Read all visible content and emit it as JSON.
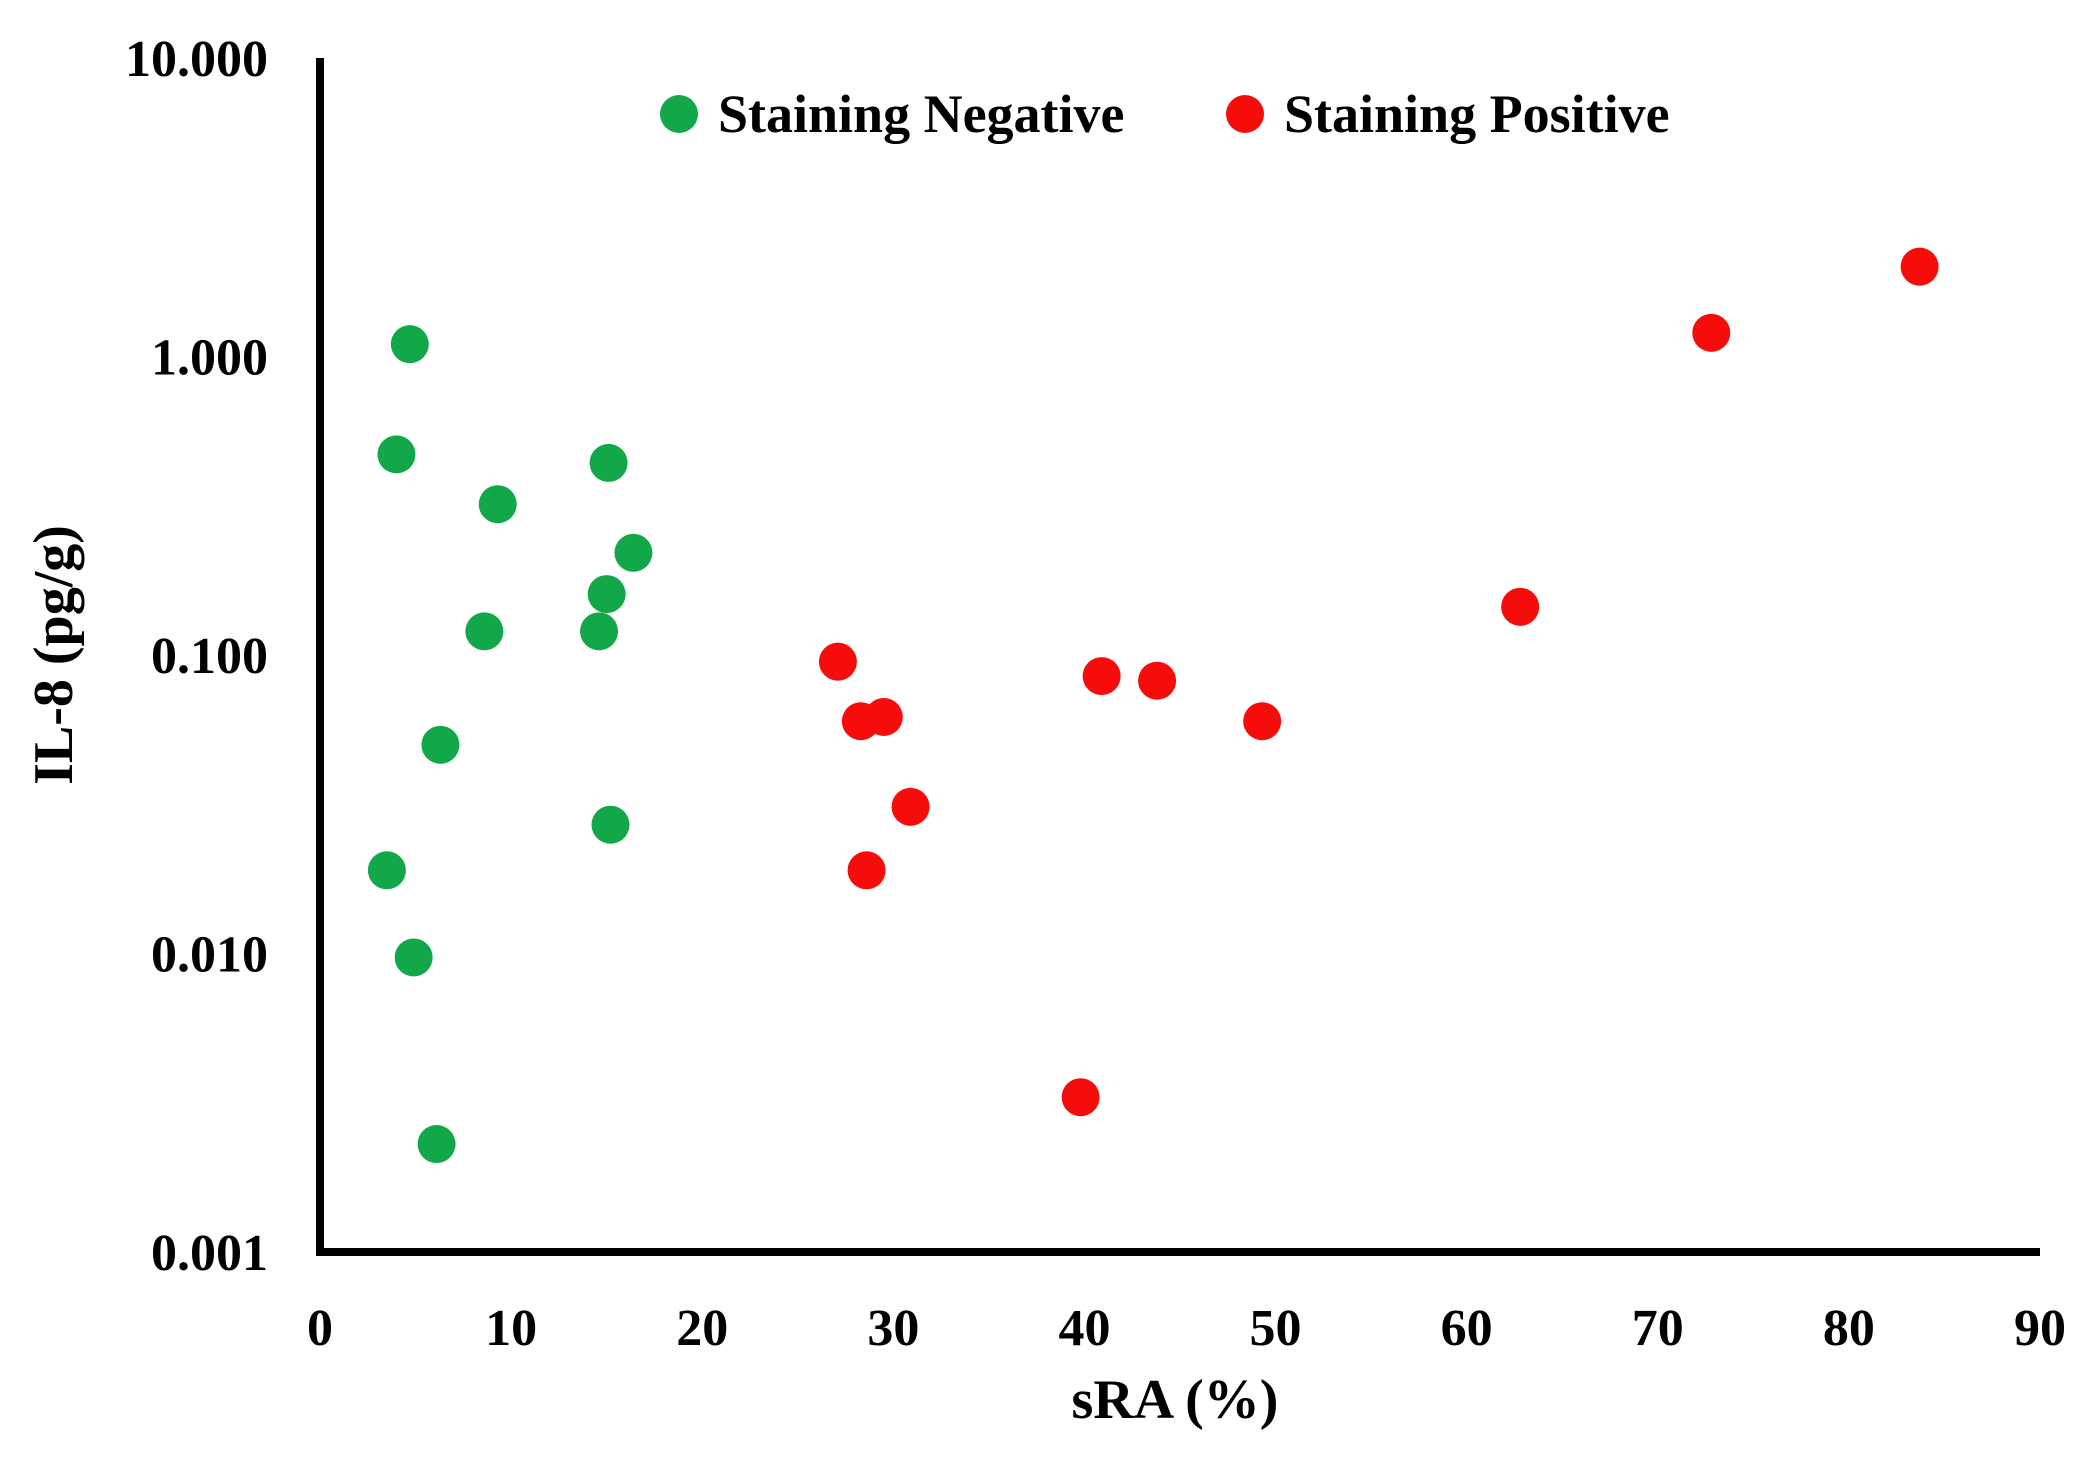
{
  "colors": {
    "negative": "#12a84a",
    "positive": "#f70c0c",
    "axis": "#000000"
  },
  "chart_data": {
    "type": "scatter",
    "title": "",
    "xlabel": "sRA (%)",
    "ylabel": "IL-8 (pg/g)",
    "xlim": [
      0,
      90
    ],
    "ylim": [
      0.001,
      10
    ],
    "y_scale": "log",
    "x_ticks": [
      "0",
      "10",
      "20",
      "30",
      "40",
      "50",
      "60",
      "70",
      "80",
      "90"
    ],
    "y_ticks": [
      "0.001",
      "0.010",
      "0.100",
      "1.000",
      "10.000"
    ],
    "grid": false,
    "legend_position": "top",
    "series": [
      {
        "name": "Staining Negative",
        "color": "#12a84a",
        "points": [
          {
            "x": 4.7,
            "y": 1.1
          },
          {
            "x": 4.0,
            "y": 0.47
          },
          {
            "x": 9.3,
            "y": 0.32
          },
          {
            "x": 15.1,
            "y": 0.44
          },
          {
            "x": 16.4,
            "y": 0.22
          },
          {
            "x": 15.0,
            "y": 0.16
          },
          {
            "x": 8.6,
            "y": 0.12
          },
          {
            "x": 14.6,
            "y": 0.12
          },
          {
            "x": 6.3,
            "y": 0.05
          },
          {
            "x": 15.2,
            "y": 0.027
          },
          {
            "x": 3.5,
            "y": 0.019
          },
          {
            "x": 4.9,
            "y": 0.0097
          },
          {
            "x": 6.1,
            "y": 0.0023
          }
        ]
      },
      {
        "name": "Staining Positive",
        "color": "#f70c0c",
        "points": [
          {
            "x": 83.7,
            "y": 2.0
          },
          {
            "x": 72.8,
            "y": 1.2
          },
          {
            "x": 62.8,
            "y": 0.145
          },
          {
            "x": 27.1,
            "y": 0.095
          },
          {
            "x": 40.9,
            "y": 0.085
          },
          {
            "x": 43.8,
            "y": 0.082
          },
          {
            "x": 28.3,
            "y": 0.06
          },
          {
            "x": 29.5,
            "y": 0.062
          },
          {
            "x": 49.3,
            "y": 0.06
          },
          {
            "x": 30.9,
            "y": 0.031
          },
          {
            "x": 28.6,
            "y": 0.019
          },
          {
            "x": 39.8,
            "y": 0.0033
          }
        ]
      }
    ]
  }
}
